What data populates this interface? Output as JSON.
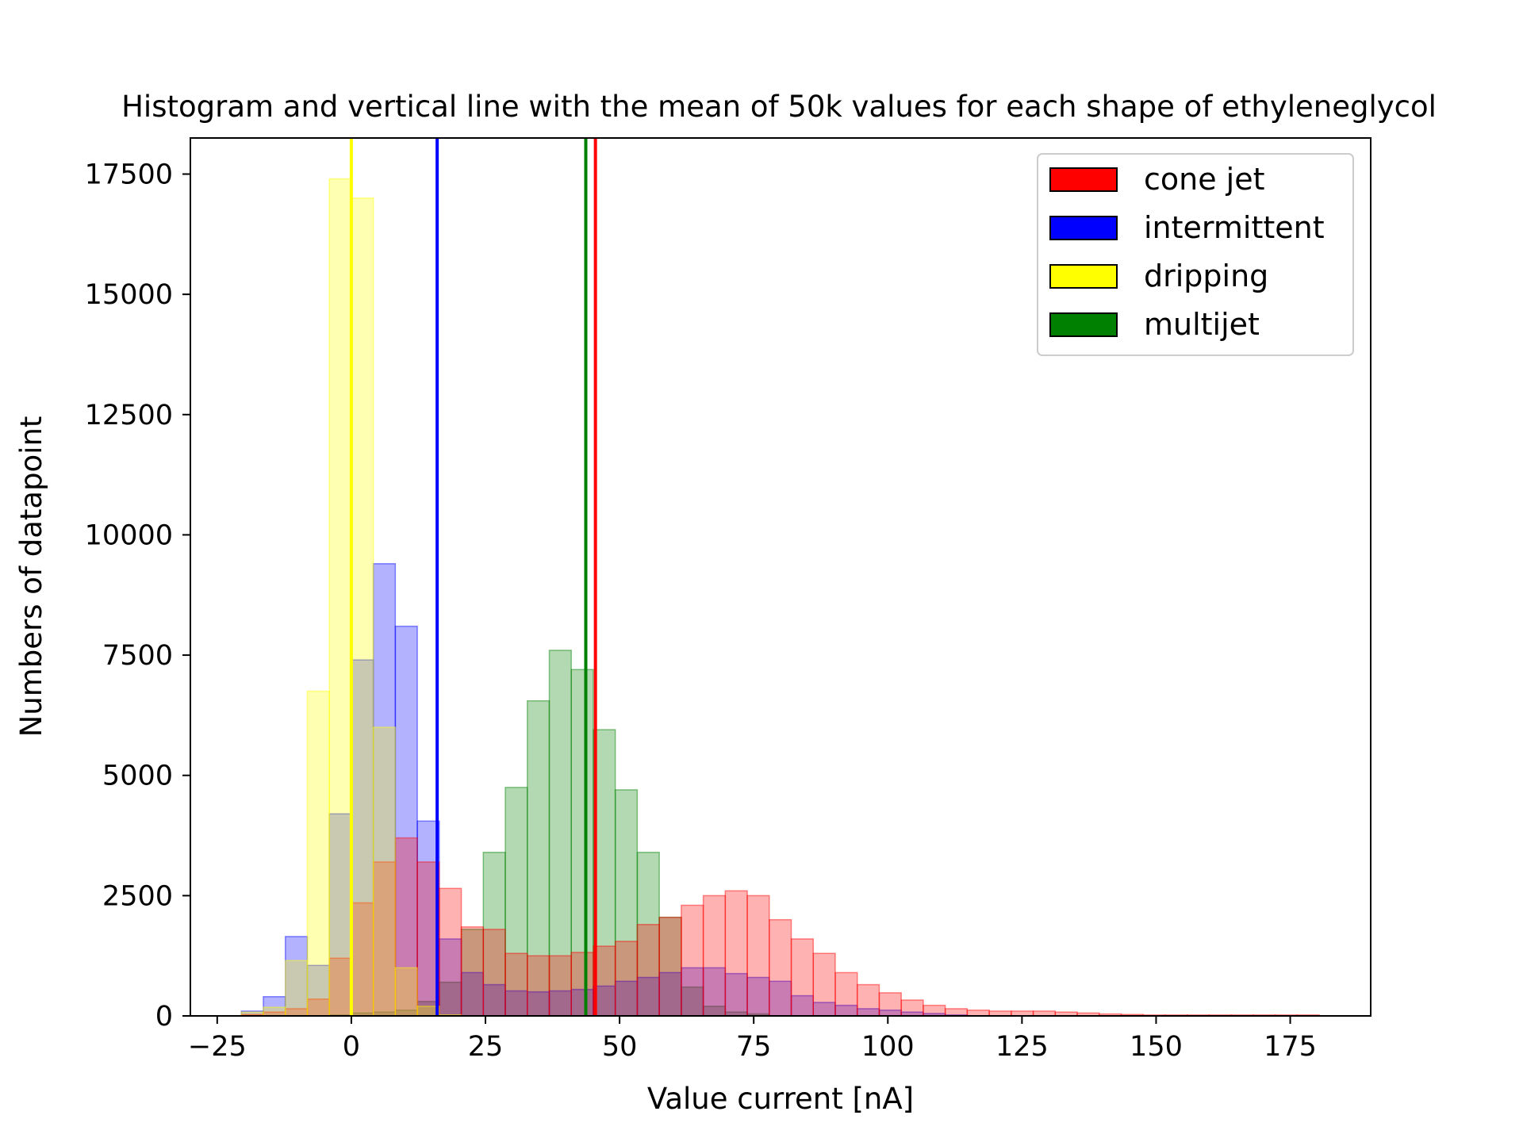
{
  "chart_data": {
    "type": "bar",
    "title": "Histogram and vertical line with the mean of 50k values for each shape of ethyleneglycol",
    "xlabel": "Value current [nA]",
    "ylabel": "Numbers of datapoint",
    "xlim": [
      -30,
      190
    ],
    "ylim": [
      0,
      18250
    ],
    "x_ticks": [
      -25,
      0,
      25,
      50,
      75,
      100,
      125,
      150,
      175
    ],
    "x_tick_labels": [
      "−25",
      "0",
      "25",
      "50",
      "75",
      "100",
      "125",
      "150",
      "175"
    ],
    "y_ticks": [
      0,
      2500,
      5000,
      7500,
      10000,
      12500,
      15000,
      17500
    ],
    "y_tick_labels": [
      "0",
      "2500",
      "5000",
      "7500",
      "10000",
      "12500",
      "15000",
      "17500"
    ],
    "bin_width": 4.1,
    "grid": false,
    "legend_position": "top-right",
    "legend": [
      "cone jet",
      "intermittent",
      "dripping",
      "multijet"
    ],
    "bar_alpha": 0.3,
    "series": [
      {
        "name": "multijet",
        "color": "#008000",
        "mean": 43.7,
        "bins_start": [
          -20.5,
          -16.4,
          -12.3,
          -8.2,
          -4.1,
          0,
          4.1,
          8.2,
          12.3,
          16.4,
          20.5,
          24.6,
          28.7,
          32.8,
          36.9,
          41.0,
          45.1,
          49.2,
          53.3,
          57.4,
          61.5,
          65.6,
          69.7,
          73.8,
          77.9
        ],
        "values": [
          0,
          0,
          0,
          0,
          20,
          60,
          80,
          120,
          300,
          700,
          1800,
          3400,
          4750,
          6550,
          7600,
          7200,
          5950,
          4700,
          3400,
          2050,
          600,
          200,
          80,
          40,
          0
        ]
      },
      {
        "name": "intermittent",
        "color": "#0000ff",
        "mean": 16.0,
        "bins_start": [
          -20.5,
          -16.4,
          -12.3,
          -8.2,
          -4.1,
          0,
          4.1,
          8.2,
          12.3,
          16.4,
          20.5,
          24.6,
          28.7,
          32.8,
          36.9,
          41.0,
          45.1,
          49.2,
          53.3,
          57.4,
          61.5,
          65.6,
          69.7,
          73.8,
          77.9,
          82.0,
          86.1,
          90.2,
          94.3,
          98.4,
          102.5,
          106.6,
          110.7
        ],
        "values": [
          100,
          400,
          1650,
          1050,
          4200,
          7400,
          9400,
          8100,
          4050,
          1600,
          900,
          650,
          520,
          500,
          520,
          550,
          620,
          720,
          800,
          900,
          1000,
          1000,
          880,
          800,
          720,
          420,
          280,
          220,
          150,
          120,
          80,
          50,
          20
        ]
      },
      {
        "name": "cone jet",
        "color": "#ff0000",
        "mean": 45.5,
        "bins_start": [
          -20.5,
          -16.4,
          -12.3,
          -8.2,
          -4.1,
          0,
          4.1,
          8.2,
          12.3,
          16.4,
          20.5,
          24.6,
          28.7,
          32.8,
          36.9,
          41.0,
          45.1,
          49.2,
          53.3,
          57.4,
          61.5,
          65.6,
          69.7,
          73.8,
          77.9,
          82.0,
          86.1,
          90.2,
          94.3,
          98.4,
          102.5,
          106.6,
          110.7,
          114.8,
          118.9,
          123.0,
          127.1,
          131.2,
          135.3,
          139.4,
          143.5,
          147.6,
          151.7,
          155.8,
          159.9,
          164.0,
          168.1,
          172.2,
          176.3
        ],
        "values": [
          30,
          80,
          150,
          350,
          1200,
          2350,
          3200,
          3700,
          3200,
          2650,
          1850,
          1800,
          1300,
          1250,
          1250,
          1320,
          1450,
          1550,
          1900,
          2050,
          2300,
          2500,
          2600,
          2500,
          2000,
          1600,
          1300,
          900,
          650,
          480,
          330,
          220,
          150,
          120,
          100,
          100,
          100,
          80,
          60,
          40,
          30,
          20,
          20,
          20,
          20,
          20,
          20,
          20,
          20
        ]
      },
      {
        "name": "dripping",
        "color": "#ffff00",
        "mean": 0.0,
        "bins_start": [
          -20.5,
          -16.4,
          -12.3,
          -8.2,
          -4.1,
          0,
          4.1,
          8.2,
          12.3,
          16.4
        ],
        "values": [
          80,
          180,
          1150,
          6750,
          17400,
          17000,
          6000,
          1000,
          200,
          20
        ]
      }
    ]
  }
}
